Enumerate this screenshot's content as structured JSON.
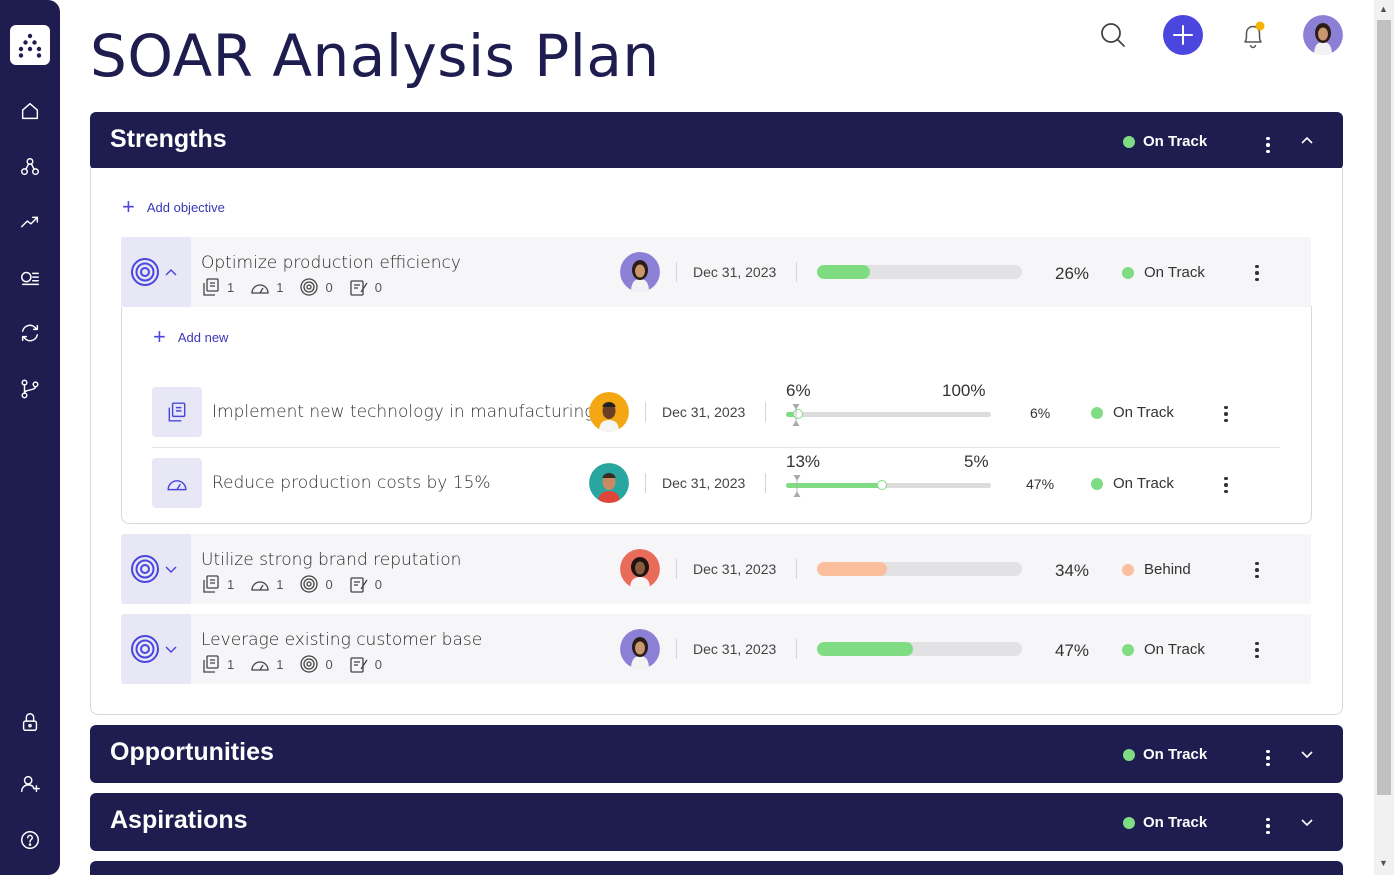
{
  "page": {
    "title": "SOAR Analysis Plan"
  },
  "colors": {
    "navy": "#1f1c4f",
    "accent": "#4b46de",
    "on_track": "#7fdc83",
    "behind": "#fbbf9e",
    "notify": "#f5b400"
  },
  "sidebar": {
    "items": [
      {
        "name": "home-icon"
      },
      {
        "name": "hierarchy-icon"
      },
      {
        "name": "trend-icon"
      },
      {
        "name": "list-icon"
      },
      {
        "name": "sync-icon"
      },
      {
        "name": "branch-icon"
      },
      {
        "name": "lock-icon"
      },
      {
        "name": "add-user-icon"
      },
      {
        "name": "help-icon"
      }
    ]
  },
  "sections": [
    {
      "title": "Strengths",
      "status": "On Track",
      "expanded": true
    },
    {
      "title": "Opportunities",
      "status": "On Track",
      "expanded": false
    },
    {
      "title": "Aspirations",
      "status": "On Track",
      "expanded": false
    }
  ],
  "strengths": {
    "add_objective": "Add objective",
    "objectives": [
      {
        "title": "Optimize production efficiency",
        "stats": [
          "1",
          "1",
          "0",
          "0"
        ],
        "date": "Dec 31, 2023",
        "progress": 26,
        "pct": "26%",
        "status": "On Track",
        "status_color": "#7fdc83",
        "bar_color": "#7fdc83"
      },
      {
        "title": "Utilize strong brand reputation",
        "stats": [
          "1",
          "1",
          "0",
          "0"
        ],
        "date": "Dec 31, 2023",
        "progress": 34,
        "pct": "34%",
        "status": "Behind",
        "status_color": "#fbbf9e",
        "bar_color": "#fbbf9e"
      },
      {
        "title": "Leverage existing customer base",
        "stats": [
          "1",
          "1",
          "0",
          "0"
        ],
        "date": "Dec 31, 2023",
        "progress": 47,
        "pct": "47%",
        "status": "On Track",
        "status_color": "#7fdc83",
        "bar_color": "#7fdc83"
      }
    ],
    "add_new": "Add new",
    "key_results": [
      {
        "title": "Implement new technology in manufacturing",
        "date": "Dec 31, 2023",
        "current": "6%",
        "target": "100%",
        "progress": 6,
        "pct": "6%",
        "status": "On Track"
      },
      {
        "title": "Reduce production costs by 15%",
        "date": "Dec 31, 2023",
        "current": "13%",
        "target": "5%",
        "progress": 47,
        "pct": "47%",
        "status": "On Track"
      }
    ]
  }
}
